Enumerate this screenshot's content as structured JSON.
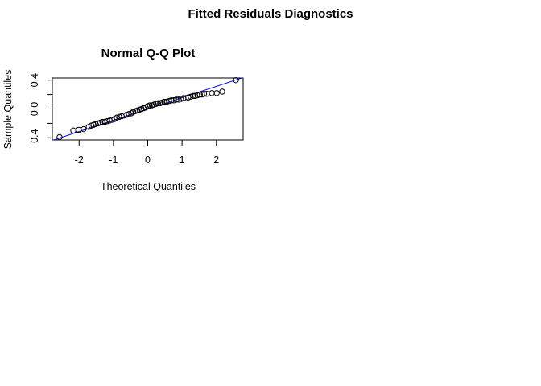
{
  "figure": {
    "title": "Fitted Residuals Diagnostics"
  },
  "chart_data": {
    "type": "scatter",
    "title": "Normal Q-Q Plot",
    "xlabel": "Theoretical Quantiles",
    "ylabel": "Sample Quantiles",
    "xlim": [
      -2.78,
      2.78
    ],
    "ylim": [
      -0.43,
      0.43
    ],
    "x_ticks": [
      -2,
      -1,
      0,
      1,
      2
    ],
    "x_tick_labels": [
      "-2",
      "-1",
      "0",
      "1",
      "2"
    ],
    "y_ticks": [
      -0.4,
      -0.2,
      0.0,
      0.2,
      0.4
    ],
    "y_tick_labels": [
      "-0.4",
      "",
      "0.0",
      "",
      "0.4"
    ],
    "grid": false,
    "legend": "none",
    "points": {
      "theoretical": [
        -2.57,
        -2.17,
        -2.01,
        -1.87,
        -1.72,
        -1.64,
        -1.58,
        -1.52,
        -1.45,
        -1.38,
        -1.32,
        -1.25,
        -1.18,
        -1.11,
        -1.04,
        -0.97,
        -0.9,
        -0.83,
        -0.76,
        -0.69,
        -0.62,
        -0.55,
        -0.48,
        -0.42,
        -0.36,
        -0.3,
        -0.24,
        -0.18,
        -0.12,
        -0.06,
        0.0,
        0.06,
        0.12,
        0.18,
        0.24,
        0.3,
        0.36,
        0.42,
        0.48,
        0.55,
        0.62,
        0.69,
        0.76,
        0.83,
        0.9,
        0.97,
        1.04,
        1.11,
        1.18,
        1.25,
        1.32,
        1.38,
        1.45,
        1.52,
        1.58,
        1.64,
        1.72,
        1.87,
        2.01,
        2.17,
        2.57
      ],
      "sample": [
        -0.39,
        -0.3,
        -0.29,
        -0.28,
        -0.25,
        -0.23,
        -0.22,
        -0.21,
        -0.2,
        -0.19,
        -0.18,
        -0.18,
        -0.17,
        -0.16,
        -0.15,
        -0.14,
        -0.12,
        -0.11,
        -0.1,
        -0.09,
        -0.08,
        -0.07,
        -0.06,
        -0.04,
        -0.03,
        -0.02,
        -0.01,
        0.0,
        0.01,
        0.02,
        0.04,
        0.05,
        0.05,
        0.06,
        0.07,
        0.08,
        0.08,
        0.09,
        0.1,
        0.1,
        0.11,
        0.12,
        0.12,
        0.13,
        0.13,
        0.14,
        0.15,
        0.15,
        0.16,
        0.17,
        0.18,
        0.18,
        0.19,
        0.2,
        0.2,
        0.21,
        0.21,
        0.22,
        0.22,
        0.24,
        0.4
      ]
    },
    "reference_line": {
      "intercept": 0.0,
      "slope": 0.157,
      "color": "#0000ff"
    },
    "point_color": "#000000"
  }
}
